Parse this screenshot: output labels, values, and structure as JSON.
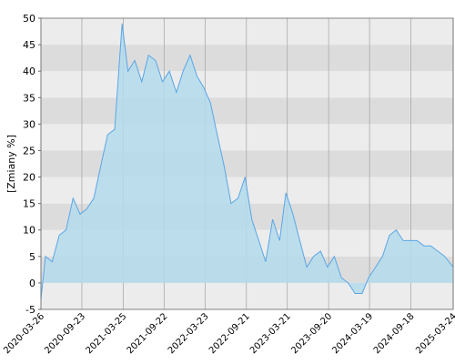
{
  "chart_data": {
    "type": "area",
    "y_label": "[Zmiany %]",
    "x": [
      "2020-03-26",
      "2020-04-15",
      "2020-05-15",
      "2020-06-15",
      "2020-07-15",
      "2020-08-15",
      "2020-09-15",
      "2020-10-15",
      "2020-11-15",
      "2020-12-15",
      "2021-01-15",
      "2021-02-15",
      "2021-03-20",
      "2021-04-15",
      "2021-05-15",
      "2021-06-15",
      "2021-07-15",
      "2021-08-15",
      "2021-09-15",
      "2021-10-15",
      "2021-11-15",
      "2021-12-15",
      "2022-01-15",
      "2022-02-15",
      "2022-03-15",
      "2022-04-15",
      "2022-05-15",
      "2022-06-15",
      "2022-07-15",
      "2022-08-15",
      "2022-09-15",
      "2022-10-15",
      "2022-11-15",
      "2022-12-15",
      "2023-01-15",
      "2023-02-15",
      "2023-03-15",
      "2023-04-15",
      "2023-05-15",
      "2023-06-15",
      "2023-07-15",
      "2023-08-15",
      "2023-09-15",
      "2023-10-15",
      "2023-11-15",
      "2023-12-15",
      "2024-01-15",
      "2024-02-15",
      "2024-03-15",
      "2024-04-15",
      "2024-05-15",
      "2024-06-15",
      "2024-07-15",
      "2024-08-15",
      "2024-09-15",
      "2024-10-15",
      "2024-11-15",
      "2024-12-15",
      "2025-01-15",
      "2025-02-15",
      "2025-03-24"
    ],
    "values": [
      -3,
      5,
      4,
      9,
      10,
      16,
      13,
      14,
      16,
      22,
      28,
      29,
      49,
      40,
      42,
      38,
      43,
      42,
      38,
      40,
      36,
      40,
      43,
      39,
      37,
      34,
      28,
      22,
      15,
      16,
      20,
      12,
      8,
      4,
      12,
      8,
      17,
      13,
      8,
      3,
      5,
      6,
      3,
      5,
      1,
      0,
      -2,
      -2,
      1,
      3,
      5,
      9,
      10,
      8,
      8,
      8,
      7,
      7,
      6,
      5,
      3
    ],
    "color": "#5aa5e6",
    "fill": "#b4dcec",
    "xlim": [
      "2020-03-26",
      "2025-03-24"
    ],
    "xticks": [
      "2020-03-26",
      "2020-09-23",
      "2021-03-25",
      "2021-09-22",
      "2022-03-23",
      "2022-09-21",
      "2023-03-21",
      "2023-09-20",
      "2024-03-19",
      "2024-09-18",
      "2025-03-24"
    ],
    "ylim": [
      -5,
      50
    ],
    "yticks": [
      -5,
      0,
      5,
      10,
      15,
      20,
      25,
      30,
      35,
      40,
      45,
      50
    ],
    "grid": true
  }
}
